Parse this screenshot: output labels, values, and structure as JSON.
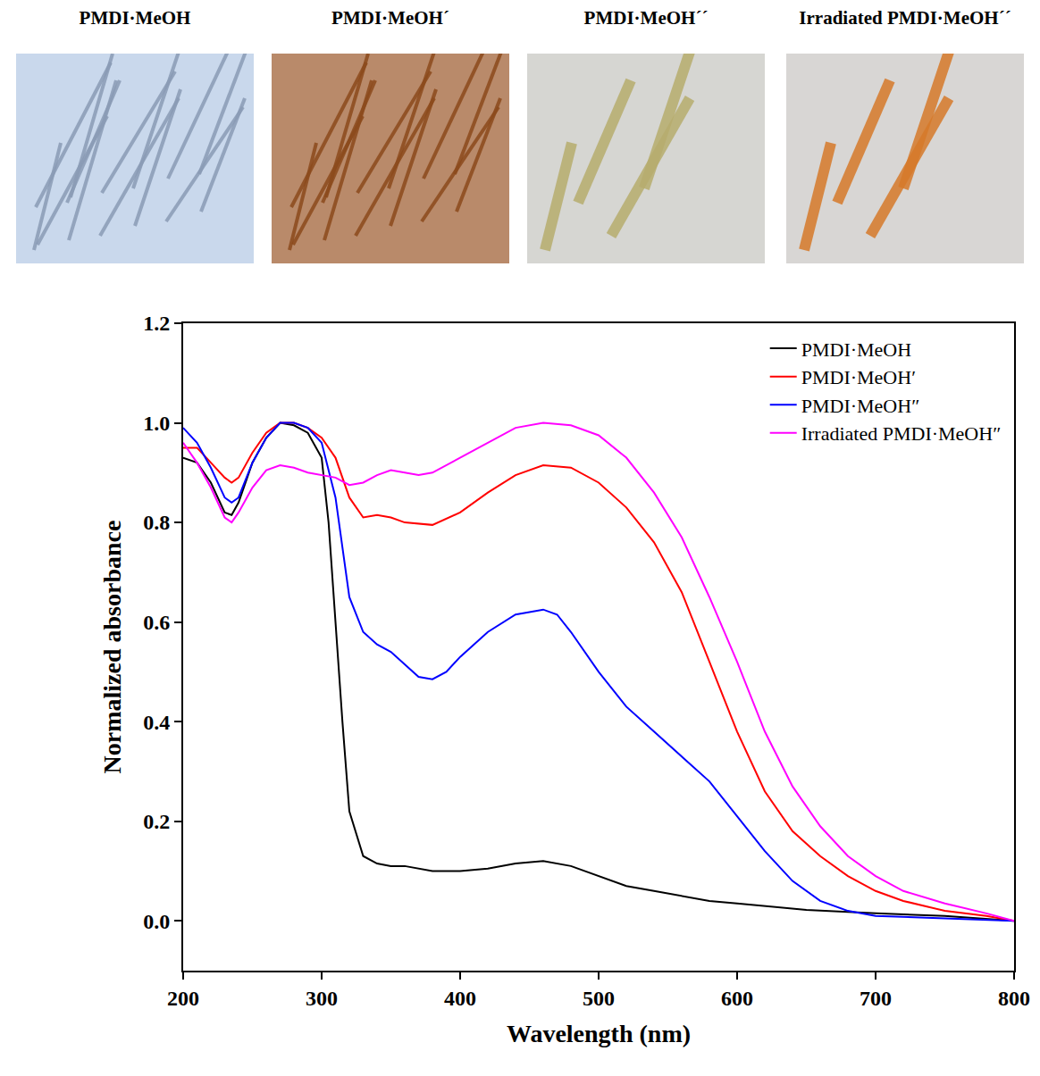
{
  "photo_labels": [
    "PMDI·MeOH",
    "PMDI·MeOH´",
    "PMDI·MeOH´´",
    "Irradiated PMDI·MeOH´´"
  ],
  "chart_data": {
    "type": "line",
    "x_label": "Wavelength (nm)",
    "y_label": "Normalized absorbance",
    "xlim": [
      200,
      800
    ],
    "xticks": [
      200,
      300,
      400,
      500,
      600,
      700,
      800
    ],
    "ylim": [
      -0.1,
      1.2
    ],
    "yticks": [
      {
        "value": 0,
        "label": "0.0"
      },
      {
        "value": 0.2,
        "label": "0.2"
      },
      {
        "value": 0.4,
        "label": "0.4"
      },
      {
        "value": 0.6,
        "label": "0.6"
      },
      {
        "value": 0.8,
        "label": "0.8"
      },
      {
        "value": 1,
        "label": "1.0"
      },
      {
        "value": 1.2,
        "label": "1.2"
      }
    ],
    "grid": false,
    "legend": "top right",
    "series": [
      {
        "name": "PMDI·MeOH",
        "color": "#000000",
        "x": [
          200,
          210,
          220,
          230,
          235,
          240,
          250,
          260,
          270,
          280,
          290,
          300,
          305,
          310,
          315,
          320,
          330,
          340,
          350,
          360,
          380,
          400,
          420,
          440,
          460,
          480,
          500,
          520,
          540,
          560,
          580,
          600,
          620,
          650,
          700,
          750,
          800
        ],
        "values": [
          0.93,
          0.92,
          0.88,
          0.82,
          0.815,
          0.84,
          0.92,
          0.97,
          1.0,
          0.995,
          0.98,
          0.93,
          0.8,
          0.6,
          0.4,
          0.22,
          0.13,
          0.115,
          0.11,
          0.11,
          0.1,
          0.1,
          0.105,
          0.115,
          0.12,
          0.11,
          0.09,
          0.07,
          0.06,
          0.05,
          0.04,
          0.035,
          0.03,
          0.022,
          0.015,
          0.01,
          0.0
        ]
      },
      {
        "name": "PMDI·MeOH′",
        "color": "#ff0000",
        "x": [
          200,
          210,
          220,
          230,
          235,
          240,
          250,
          260,
          270,
          280,
          290,
          300,
          310,
          320,
          330,
          340,
          350,
          360,
          380,
          400,
          420,
          440,
          460,
          480,
          500,
          520,
          540,
          560,
          580,
          600,
          620,
          640,
          660,
          680,
          700,
          720,
          750,
          780,
          800
        ],
        "values": [
          0.95,
          0.95,
          0.92,
          0.89,
          0.88,
          0.89,
          0.94,
          0.98,
          1.0,
          1.0,
          0.99,
          0.97,
          0.93,
          0.85,
          0.81,
          0.815,
          0.81,
          0.8,
          0.795,
          0.82,
          0.86,
          0.895,
          0.915,
          0.91,
          0.88,
          0.83,
          0.76,
          0.66,
          0.52,
          0.38,
          0.26,
          0.18,
          0.13,
          0.09,
          0.06,
          0.04,
          0.02,
          0.01,
          0.0
        ]
      },
      {
        "name": "PMDI·MeOH″",
        "color": "#0000ff",
        "x": [
          200,
          210,
          220,
          230,
          235,
          240,
          250,
          260,
          270,
          280,
          290,
          300,
          310,
          320,
          330,
          340,
          350,
          360,
          370,
          380,
          390,
          400,
          420,
          440,
          460,
          470,
          480,
          500,
          520,
          540,
          560,
          580,
          600,
          620,
          640,
          660,
          680,
          700,
          750,
          800
        ],
        "values": [
          0.99,
          0.96,
          0.91,
          0.85,
          0.84,
          0.85,
          0.92,
          0.97,
          1.0,
          1.0,
          0.99,
          0.96,
          0.85,
          0.65,
          0.58,
          0.555,
          0.54,
          0.515,
          0.49,
          0.485,
          0.5,
          0.53,
          0.58,
          0.615,
          0.625,
          0.615,
          0.58,
          0.5,
          0.43,
          0.38,
          0.33,
          0.28,
          0.21,
          0.14,
          0.08,
          0.04,
          0.02,
          0.01,
          0.005,
          0.0
        ]
      },
      {
        "name": "Irradiated PMDI·MeOH″",
        "color": "#ff00ff",
        "x": [
          200,
          210,
          220,
          230,
          235,
          240,
          250,
          260,
          270,
          280,
          290,
          300,
          310,
          320,
          330,
          340,
          350,
          360,
          370,
          380,
          400,
          420,
          440,
          460,
          480,
          500,
          520,
          540,
          560,
          580,
          600,
          620,
          640,
          660,
          680,
          700,
          720,
          750,
          780,
          800
        ],
        "values": [
          0.96,
          0.92,
          0.87,
          0.81,
          0.8,
          0.82,
          0.87,
          0.905,
          0.915,
          0.91,
          0.9,
          0.895,
          0.89,
          0.875,
          0.88,
          0.895,
          0.905,
          0.9,
          0.895,
          0.9,
          0.93,
          0.96,
          0.99,
          1.0,
          0.995,
          0.975,
          0.93,
          0.86,
          0.77,
          0.65,
          0.52,
          0.38,
          0.27,
          0.19,
          0.13,
          0.09,
          0.06,
          0.035,
          0.015,
          0.0
        ]
      }
    ]
  }
}
